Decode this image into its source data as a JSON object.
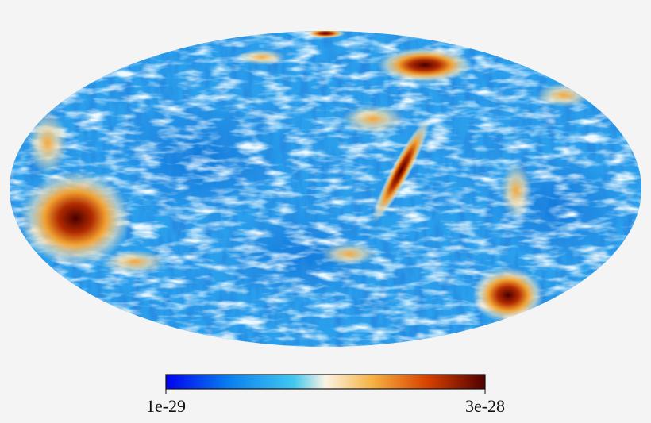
{
  "colorbar": {
    "min_label": "1e-29",
    "max_label": "3e-28"
  }
}
